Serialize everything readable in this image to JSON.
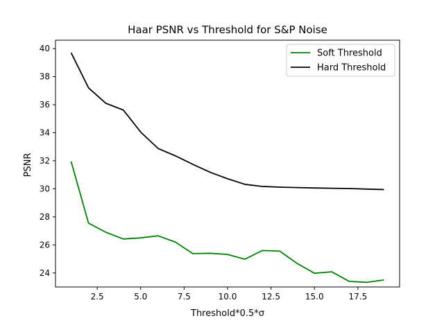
{
  "chart_data": {
    "type": "line",
    "title": "Haar PSNR vs Threshold for S&P Noise",
    "xlabel": "Threshold*0.5*σ",
    "ylabel": "PSNR",
    "xlim": [
      0.1,
      19.9
    ],
    "ylim": [
      23.0,
      40.6
    ],
    "xticks": [
      2.5,
      5.0,
      7.5,
      10.0,
      12.5,
      15.0,
      17.5
    ],
    "xtick_labels": [
      "2.5",
      "5.0",
      "7.5",
      "10.0",
      "12.5",
      "15.0",
      "17.5"
    ],
    "yticks": [
      24,
      26,
      28,
      30,
      32,
      34,
      36,
      38,
      40
    ],
    "ytick_labels": [
      "24",
      "26",
      "28",
      "30",
      "32",
      "34",
      "36",
      "38",
      "40"
    ],
    "grid": false,
    "legend_position": "top-right",
    "x": [
      1,
      2,
      3,
      4,
      5,
      6,
      7,
      8,
      9,
      10,
      11,
      12,
      13,
      14,
      15,
      16,
      17,
      18,
      19
    ],
    "series": [
      {
        "name": "Soft Threshold",
        "color": "#008000",
        "values": [
          31.95,
          27.55,
          26.9,
          26.42,
          26.5,
          26.65,
          26.2,
          25.38,
          25.4,
          25.32,
          24.98,
          25.6,
          25.56,
          24.68,
          23.98,
          24.08,
          23.4,
          23.33,
          23.5
        ]
      },
      {
        "name": "Hard Threshold",
        "color": "#000000",
        "values": [
          39.7,
          37.2,
          36.1,
          35.62,
          34.05,
          32.88,
          32.35,
          31.75,
          31.18,
          30.72,
          30.32,
          30.17,
          30.12,
          30.09,
          30.06,
          30.04,
          30.02,
          29.98,
          29.95
        ]
      }
    ]
  }
}
